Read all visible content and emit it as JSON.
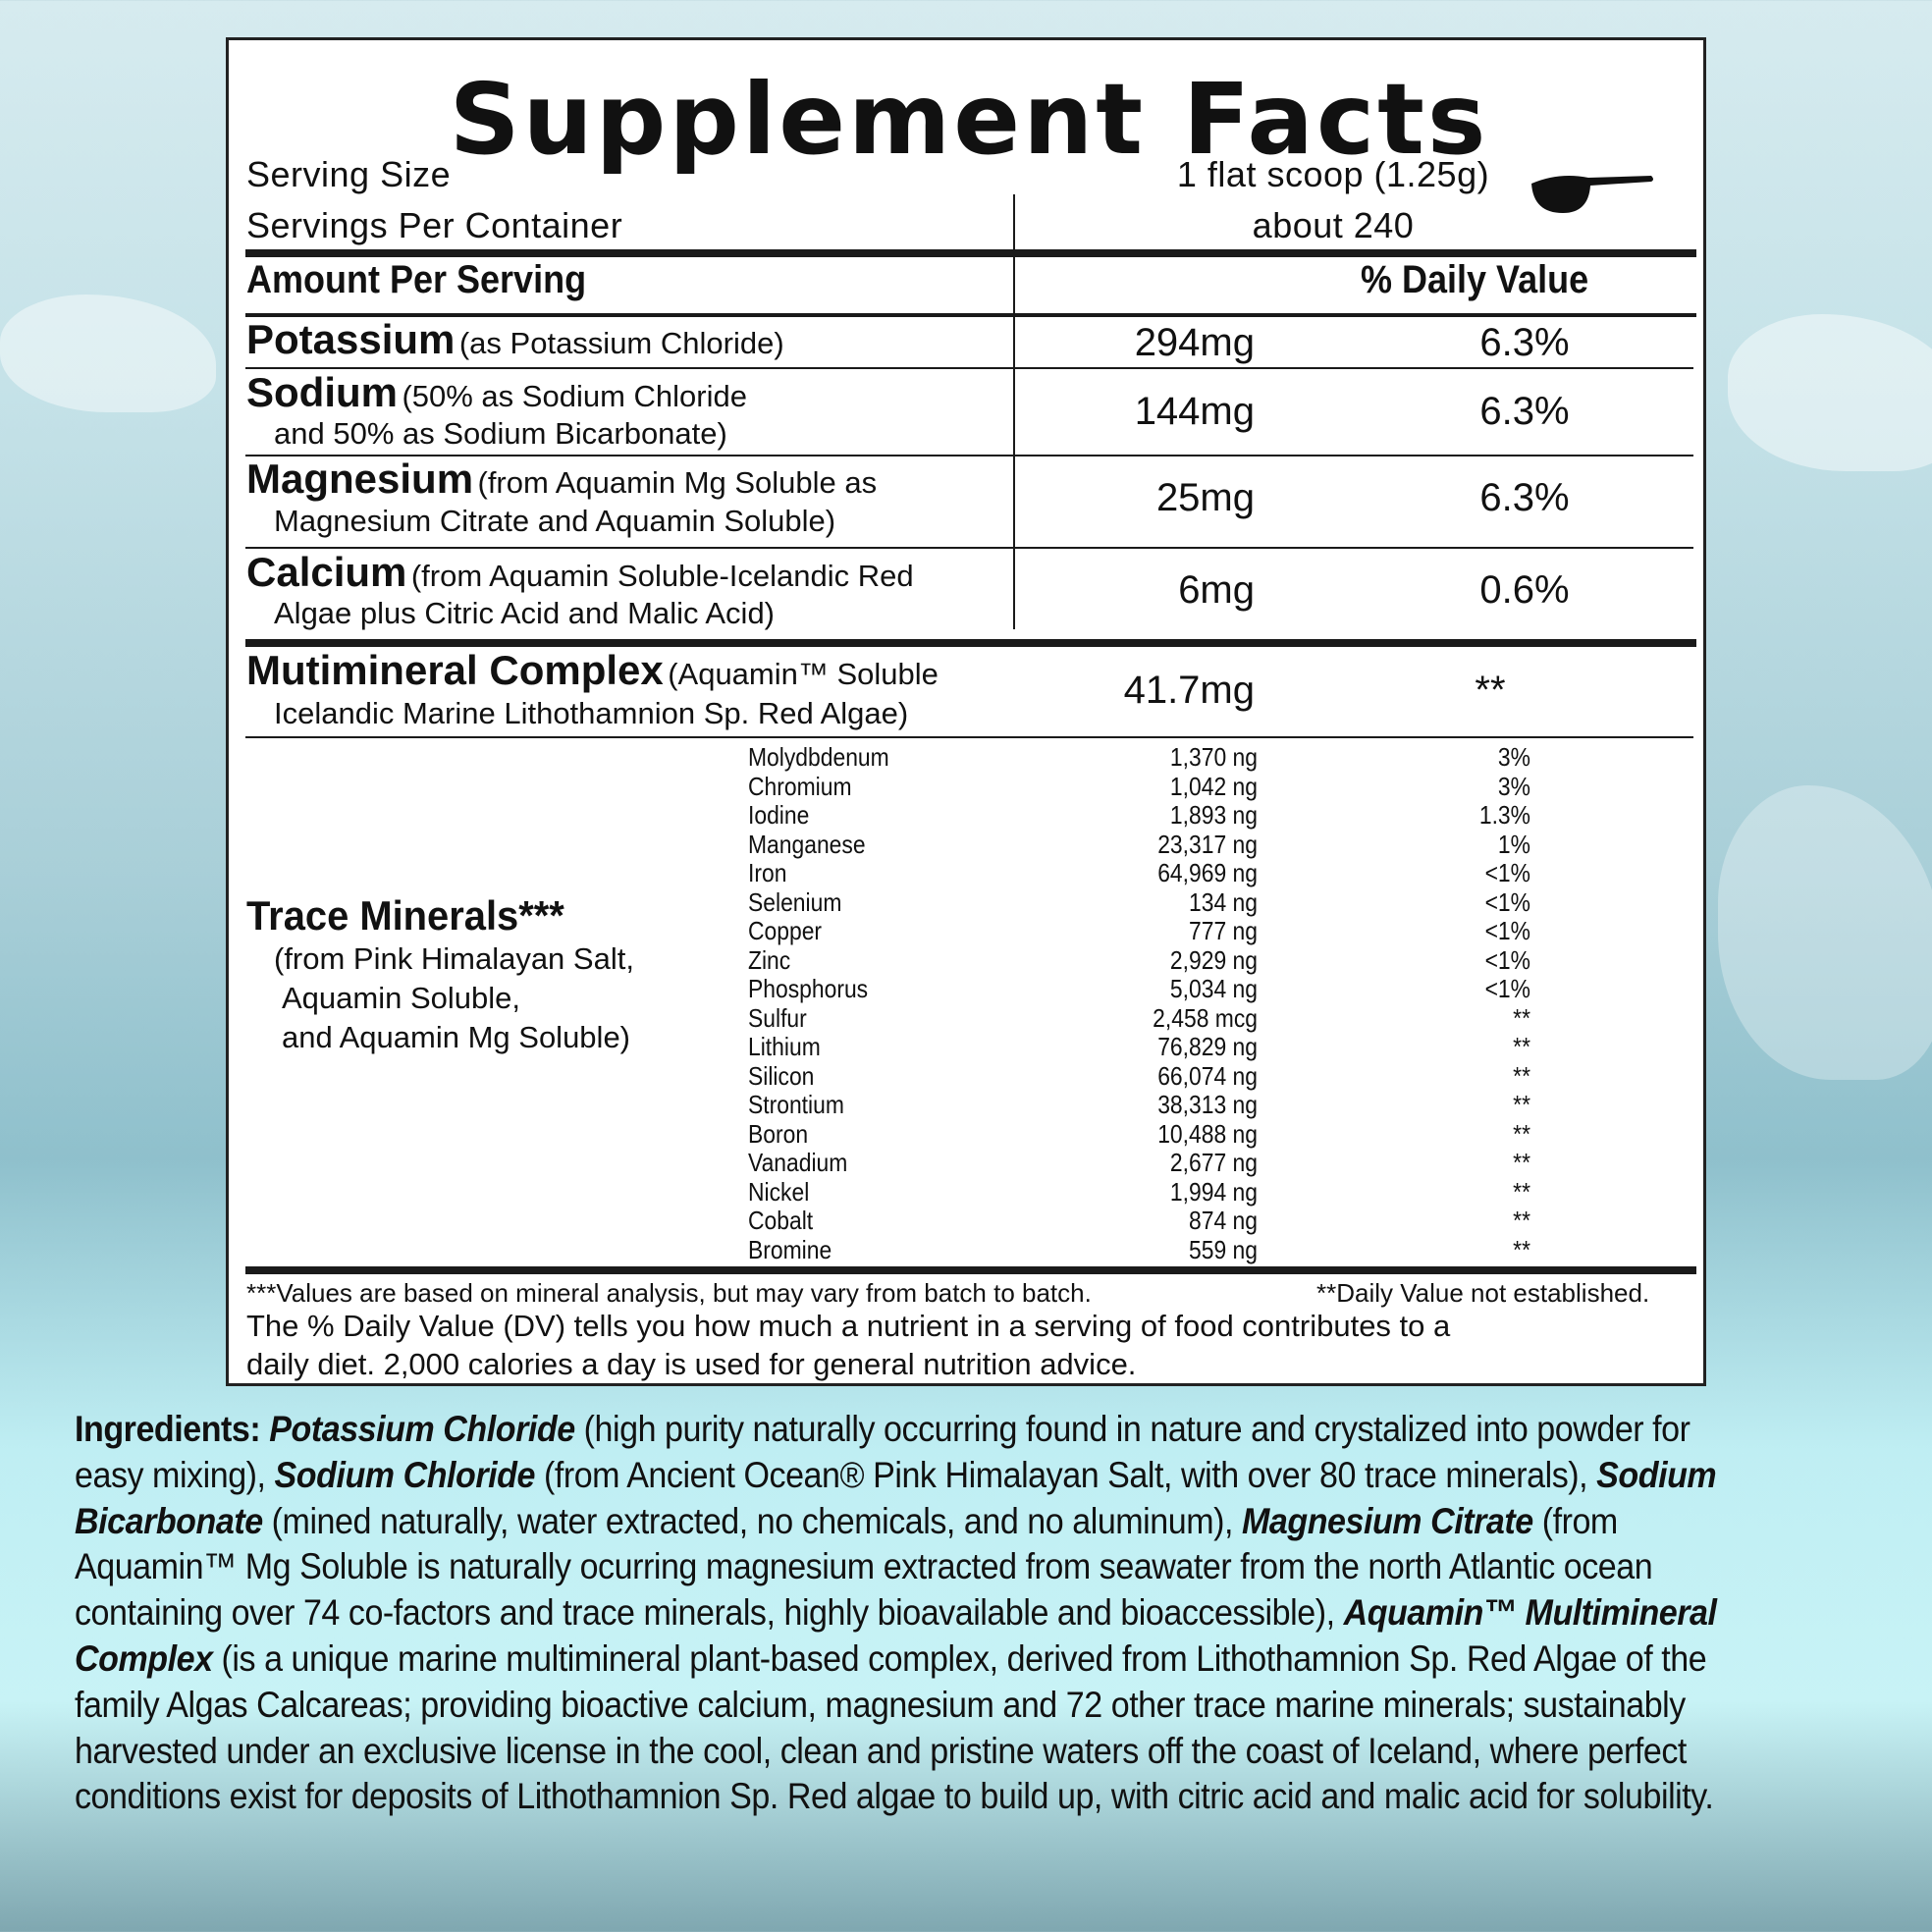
{
  "title": "Supplement Facts",
  "serving_size_label": "Serving Size",
  "serving_size_value": "1 flat scoop (1.25g)",
  "servings_label": "Servings Per Container",
  "servings_value": "about 240",
  "amount_header": "Amount Per Serving",
  "dv_header": "% Daily Value",
  "nutrients": [
    {
      "name": "Potassium",
      "source1": "(as Potassium Chloride)",
      "source2": "",
      "amount": "294mg",
      "dv": "6.3%"
    },
    {
      "name": "Sodium",
      "source1": "(50% as Sodium Chloride",
      "source2": "and 50% as Sodium Bicarbonate)",
      "amount": "144mg",
      "dv": "6.3%"
    },
    {
      "name": "Magnesium",
      "source1": "(from Aquamin Mg Soluble as",
      "source2": "Magnesium Citrate and Aquamin Soluble)",
      "amount": "25mg",
      "dv": "6.3%"
    },
    {
      "name": "Calcium",
      "source1": "(from Aquamin Soluble-Icelandic Red",
      "source2": "Algae plus Citric Acid and Malic Acid)",
      "amount": "6mg",
      "dv": "0.6%"
    }
  ],
  "complex": {
    "name": "Mutimineral Complex",
    "source1": "(Aquamin™ Soluble",
    "source2": "Icelandic Marine Lithothamnion Sp. Red Algae)",
    "amount": "41.7mg",
    "dv": "**"
  },
  "trace": {
    "title": "Trace Minerals***",
    "source1": "(from Pink Himalayan Salt,",
    "source2": "Aquamin Soluble,",
    "source3": "and Aquamin Mg Soluble)",
    "items": [
      {
        "name": "Molydbdenum",
        "amount": "1,370 ng",
        "dv": "3%"
      },
      {
        "name": "Chromium",
        "amount": "1,042 ng",
        "dv": "3%"
      },
      {
        "name": "Iodine",
        "amount": "1,893 ng",
        "dv": "1.3%"
      },
      {
        "name": "Manganese",
        "amount": "23,317 ng",
        "dv": "1%"
      },
      {
        "name": "Iron",
        "amount": "64,969 ng",
        "dv": "<1%"
      },
      {
        "name": "Selenium",
        "amount": "134 ng",
        "dv": "<1%"
      },
      {
        "name": "Copper",
        "amount": "777 ng",
        "dv": "<1%"
      },
      {
        "name": "Zinc",
        "amount": "2,929 ng",
        "dv": "<1%"
      },
      {
        "name": "Phosphorus",
        "amount": "5,034 ng",
        "dv": "<1%"
      },
      {
        "name": "Sulfur",
        "amount": "2,458 mcg",
        "dv": "**"
      },
      {
        "name": "Lithium",
        "amount": "76,829 ng",
        "dv": "**"
      },
      {
        "name": "Silicon",
        "amount": "66,074 ng",
        "dv": "**"
      },
      {
        "name": "Strontium",
        "amount": "38,313 ng",
        "dv": "**"
      },
      {
        "name": "Boron",
        "amount": "10,488 ng",
        "dv": "**"
      },
      {
        "name": "Vanadium",
        "amount": "2,677 ng",
        "dv": "**"
      },
      {
        "name": "Nickel",
        "amount": "1,994 ng",
        "dv": "**"
      },
      {
        "name": "Cobalt",
        "amount": "874 ng",
        "dv": "**"
      },
      {
        "name": "Bromine",
        "amount": "559 ng",
        "dv": "**"
      }
    ]
  },
  "footnote_left": "***Values are based on mineral analysis, but may vary from batch to batch.",
  "footnote_right": "**Daily Value not established.",
  "dv_note_1": "The % Daily Value (DV) tells you how much a nutrient in a serving of food contributes to a",
  "dv_note_2": "daily diet. 2,000 calories a day is used for general nutrition advice.",
  "ingredients": [
    {
      "t": "Ingredients: ",
      "b": true,
      "i": false
    },
    {
      "t": "Potassium Chloride",
      "b": true,
      "i": true
    },
    {
      "t": " (high purity naturally occurring found in nature and crystalized into powder for easy mixing), "
    },
    {
      "t": "Sodium Chloride",
      "b": true,
      "i": true
    },
    {
      "t": " (from Ancient Ocean® Pink Himalayan Salt, with over 80 trace minerals), "
    },
    {
      "t": "Sodium Bicarbonate",
      "b": true,
      "i": true
    },
    {
      "t": " (mined naturally, water extracted, no chemicals, and no aluminum), "
    },
    {
      "t": "Magnesium Citrate",
      "b": true,
      "i": true
    },
    {
      "t": " (from Aquamin™ Mg Soluble is naturally ocurring magnesium extracted from seawater from the north Atlantic ocean containing over 74 co-factors and trace minerals, highly bioavailable and bioaccessible), "
    },
    {
      "t": "Aquamin™ Multimineral Complex",
      "b": true,
      "i": true
    },
    {
      "t": " (is a unique marine multimineral plant-based complex, derived from Lithothamnion Sp. Red Algae of the family Algas Calcareas; providing bioactive calcium, magnesium and 72 other trace marine minerals; sustainably harvested under an exclusive license in the cool, clean and pristine waters off the coast of Iceland, where perfect conditions exist for deposits of Lithothamnion Sp. Red algae to build up, with citric acid and malic acid for solubility."
    }
  ]
}
